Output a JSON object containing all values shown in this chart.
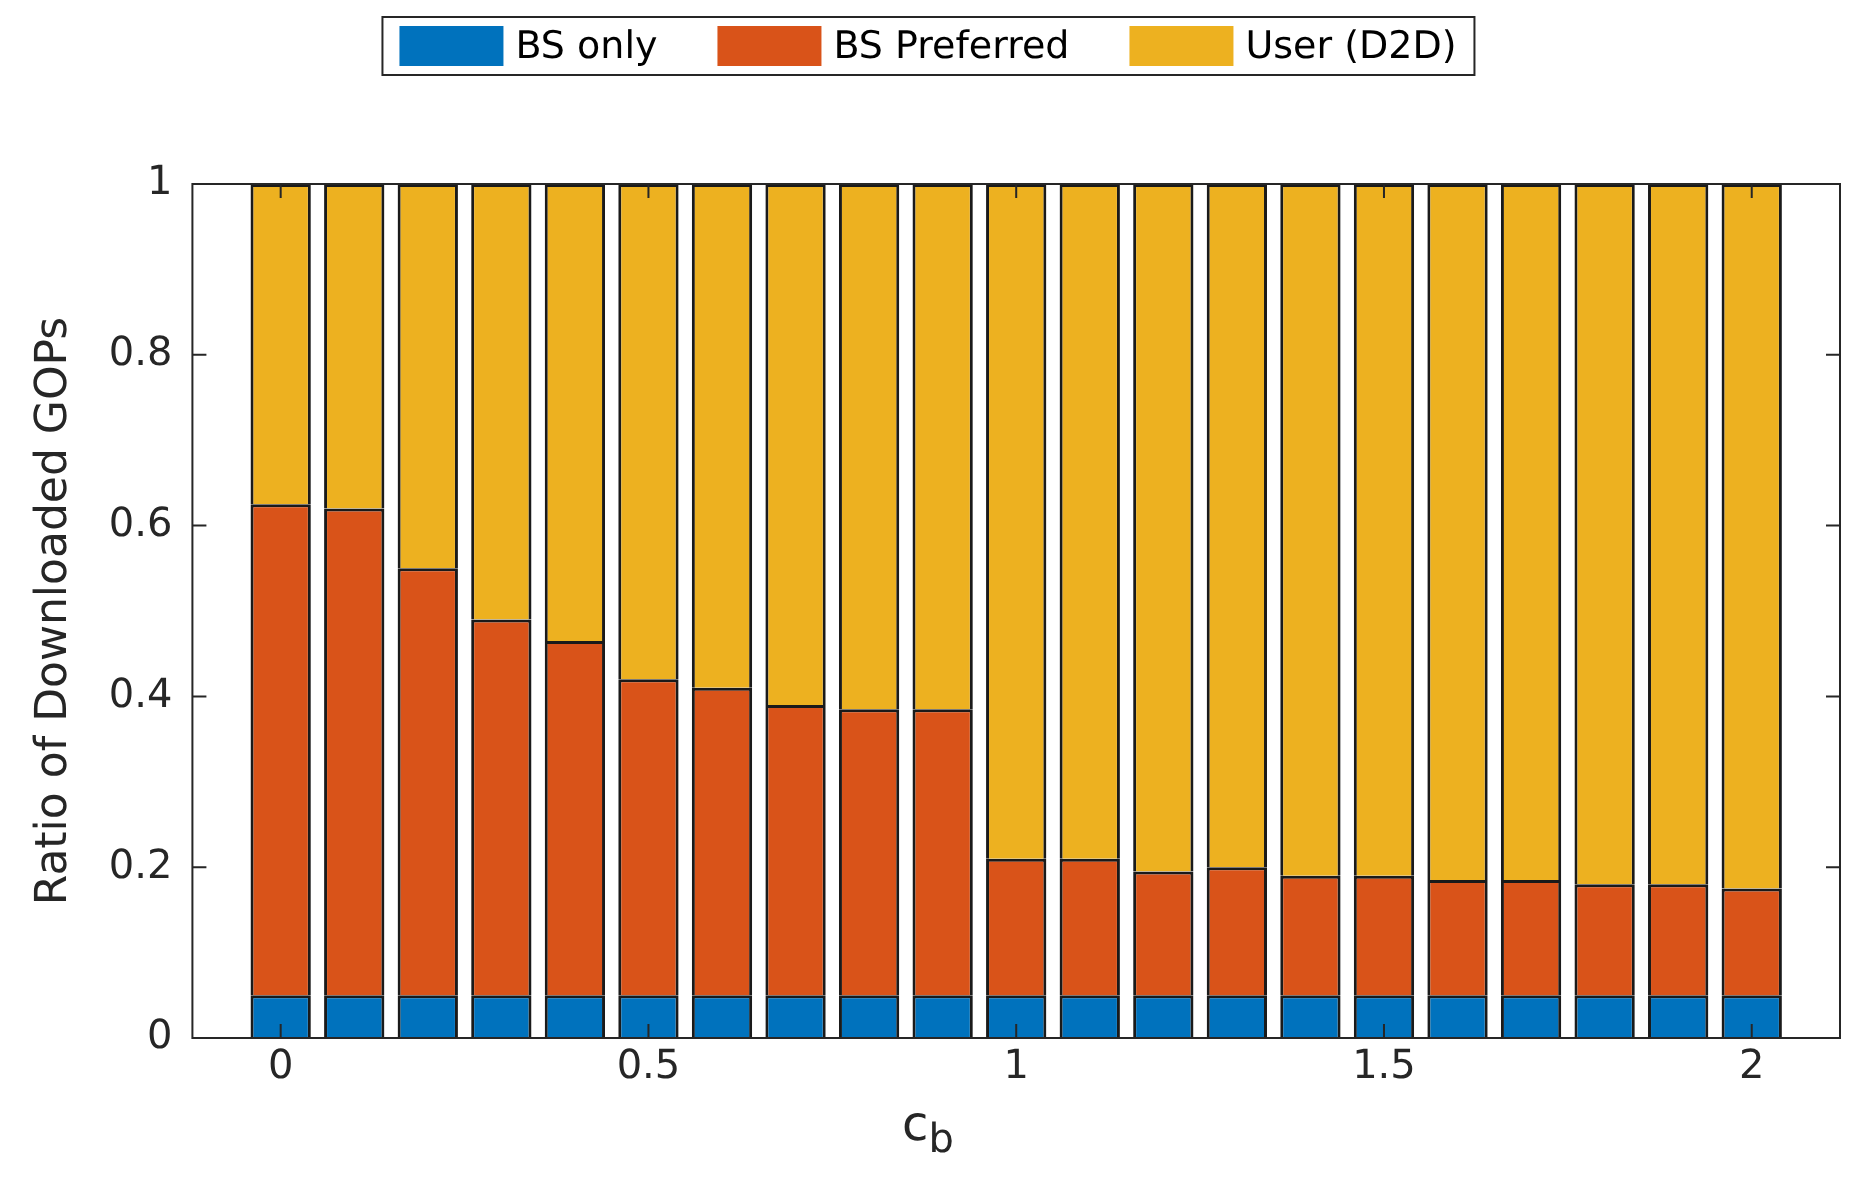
{
  "chart_data": {
    "type": "bar",
    "stacked": true,
    "xlabel": "c$_{b}$",
    "ylabel": "Ratio of Downloaded GOPs",
    "x": [
      0,
      0.1,
      0.2,
      0.3,
      0.4,
      0.5,
      0.6,
      0.7,
      0.8,
      0.9,
      1,
      1.1,
      1.2,
      1.3,
      1.4,
      1.5,
      1.6,
      1.7,
      1.8,
      1.9,
      2
    ],
    "series": [
      {
        "name": "BS only",
        "color": "#0072bd",
        "values": [
          0.05,
          0.05,
          0.05,
          0.05,
          0.05,
          0.05,
          0.05,
          0.05,
          0.05,
          0.05,
          0.05,
          0.05,
          0.05,
          0.05,
          0.05,
          0.05,
          0.05,
          0.05,
          0.05,
          0.05,
          0.05
        ]
      },
      {
        "name": "BS Preferred",
        "color": "#d95319",
        "values": [
          0.575,
          0.57,
          0.5,
          0.44,
          0.415,
          0.37,
          0.36,
          0.34,
          0.335,
          0.335,
          0.16,
          0.16,
          0.145,
          0.15,
          0.14,
          0.14,
          0.135,
          0.135,
          0.13,
          0.13,
          0.125
        ]
      },
      {
        "name": "User (D2D)",
        "color": "#edb120",
        "values": [
          0.375,
          0.38,
          0.45,
          0.51,
          0.535,
          0.58,
          0.59,
          0.61,
          0.615,
          0.615,
          0.79,
          0.79,
          0.805,
          0.8,
          0.81,
          0.81,
          0.815,
          0.815,
          0.82,
          0.82,
          0.825
        ]
      }
    ],
    "xlim": [
      -0.12,
      2.12
    ],
    "xticks": [
      0,
      0.5,
      1,
      1.5,
      2
    ],
    "ylim": [
      0,
      1
    ],
    "yticks": [
      0,
      0.2,
      0.4,
      0.6,
      0.8,
      1
    ],
    "grid": false,
    "legend": "top"
  }
}
